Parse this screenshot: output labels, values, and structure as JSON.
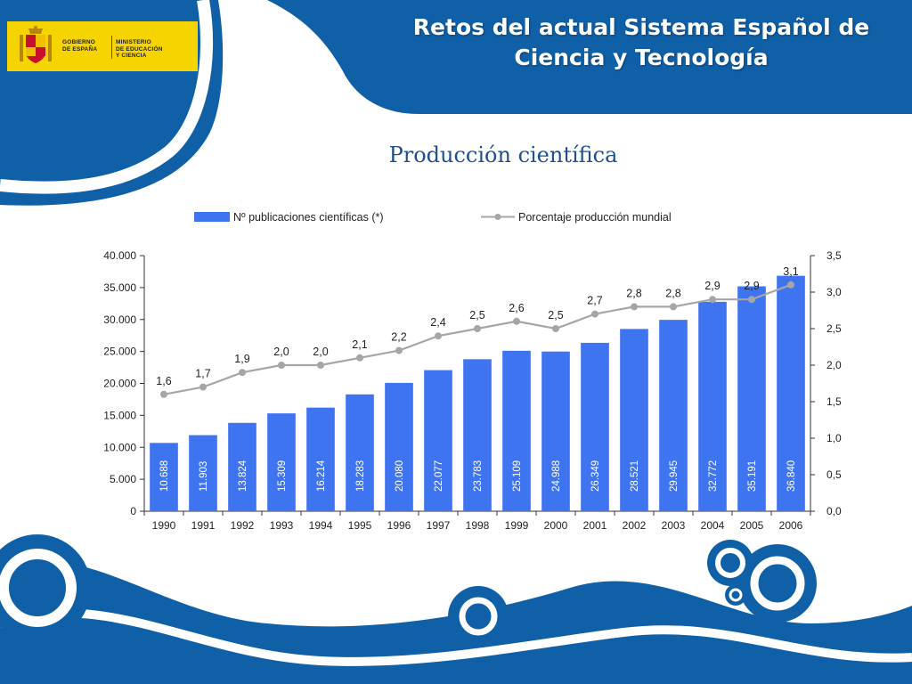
{
  "slide": {
    "title_line1": "Retos del actual Sistema Español de",
    "title_line2": "Ciencia y Tecnología"
  },
  "logo": {
    "left_text": "GOBIERNO\nDE ESPAÑA",
    "right_text": "MINISTERIO\nDE EDUCACIÓN\nY CIENCIA"
  },
  "colors": {
    "brand_blue": "#1060a8",
    "bar_blue": "#3f74f0",
    "line_gray": "#a6a6a6",
    "logo_yellow": "#f5d400"
  },
  "chart_data": {
    "type": "bar",
    "title": "Producción científica",
    "categories": [
      "1990",
      "1991",
      "1992",
      "1993",
      "1994",
      "1995",
      "1996",
      "1997",
      "1998",
      "1999",
      "2000",
      "2001",
      "2002",
      "2003",
      "2004",
      "2005",
      "2006"
    ],
    "series": [
      {
        "name": "Nº publicaciones científicas (*)",
        "type": "bar",
        "axis": "left",
        "values": [
          10688,
          11903,
          13824,
          15309,
          16214,
          18283,
          20080,
          22077,
          23783,
          25109,
          24988,
          26349,
          28521,
          29945,
          32772,
          35191,
          36840
        ],
        "labels": [
          "10.688",
          "11.903",
          "13.824",
          "15.309",
          "16.214",
          "18.283",
          "20.080",
          "22.077",
          "23.783",
          "25.109",
          "24.988",
          "26.349",
          "28.521",
          "29.945",
          "32.772",
          "35.191",
          "36.840"
        ]
      },
      {
        "name": "Porcentaje producción mundial",
        "type": "line",
        "axis": "right",
        "values": [
          1.6,
          1.7,
          1.9,
          2.0,
          2.0,
          2.1,
          2.2,
          2.4,
          2.5,
          2.6,
          2.5,
          2.7,
          2.8,
          2.8,
          2.9,
          2.9,
          3.1
        ],
        "labels": [
          "1,6",
          "1,7",
          "1,9",
          "2,0",
          "2,0",
          "2,1",
          "2,2",
          "2,4",
          "2,5",
          "2,6",
          "2,5",
          "2,7",
          "2,8",
          "2,8",
          "2,9",
          "2,9",
          "3,1"
        ]
      }
    ],
    "y_left": {
      "lim": [
        0,
        40000
      ],
      "ticks": [
        0,
        5000,
        10000,
        15000,
        20000,
        25000,
        30000,
        35000,
        40000
      ],
      "tick_labels": [
        "0",
        "5.000",
        "10.000",
        "15.000",
        "20.000",
        "25.000",
        "30.000",
        "35.000",
        "40.000"
      ]
    },
    "y_right": {
      "lim": [
        0,
        3.5
      ],
      "ticks": [
        0,
        0.5,
        1.0,
        1.5,
        2.0,
        2.5,
        3.0,
        3.5
      ],
      "tick_labels": [
        "0,0",
        "0,5",
        "1,0",
        "1,5",
        "2,0",
        "2,5",
        "3,0",
        "3,5"
      ]
    },
    "legend_position": "top",
    "grid": false
  }
}
